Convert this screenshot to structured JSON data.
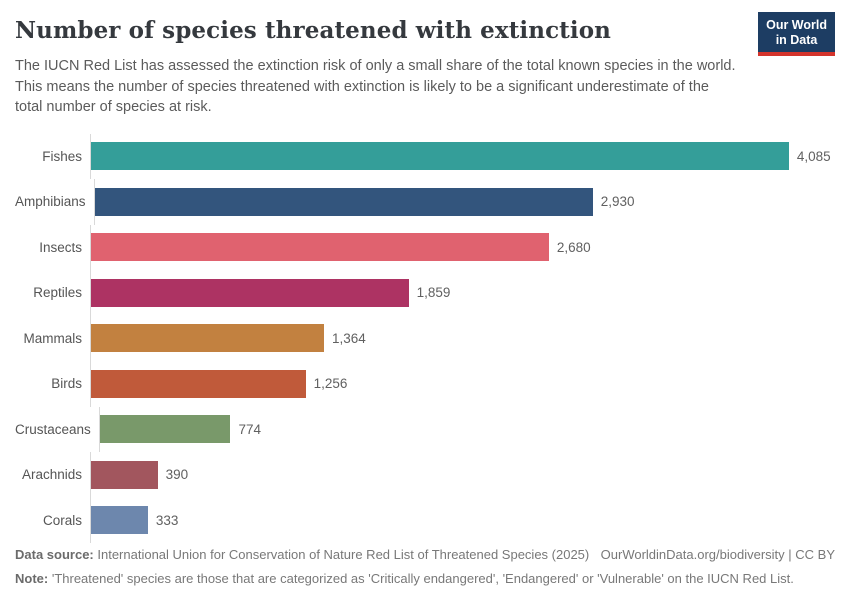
{
  "header": {
    "title": "Number of species threatened with extinction",
    "subtitle": "The IUCN Red List has assessed the extinction risk of only a small share of the total known species in the world. This means the number of species threatened with extinction is likely to be a significant underestimate of the total number of species at risk.",
    "logo": {
      "line1": "Our World",
      "line2": "in Data",
      "bg_color": "#1d3d63",
      "accent_color": "#d4342c"
    }
  },
  "chart_data": {
    "type": "bar",
    "orientation": "horizontal",
    "title": "Number of species threatened with extinction",
    "xlabel": "",
    "ylabel": "",
    "grid": false,
    "legend": "none",
    "xlim": [
      0,
      4350
    ],
    "categories": [
      "Fishes",
      "Amphibians",
      "Insects",
      "Reptiles",
      "Mammals",
      "Birds",
      "Crustaceans",
      "Arachnids",
      "Corals"
    ],
    "values": [
      4085,
      2930,
      2680,
      1859,
      1364,
      1256,
      774,
      390,
      333
    ],
    "value_labels": [
      "4,085",
      "2,930",
      "2,680",
      "1,859",
      "1,364",
      "1,256",
      "774",
      "390",
      "333"
    ],
    "bar_colors": [
      "#349e99",
      "#33557d",
      "#e0626f",
      "#ad3363",
      "#c28140",
      "#c05a3a",
      "#79996a",
      "#a2565e",
      "#6d87ad"
    ],
    "axis_line_color": "#d9d9d9"
  },
  "footer": {
    "source_label": "Data source:",
    "source_text": " International Union for Conservation of Nature Red List of Threatened Species (2025)",
    "link_text": "OurWorldinData.org/biodiversity | CC BY",
    "note_label": "Note:",
    "note_text": " 'Threatened' species are those that are categorized as 'Critically endangered', 'Endangered' or 'Vulnerable' on the IUCN Red List."
  }
}
